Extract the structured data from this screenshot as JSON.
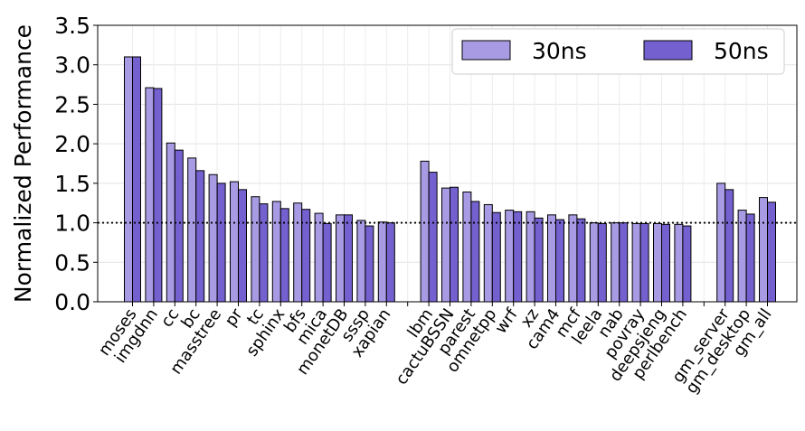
{
  "chart_data": {
    "type": "bar",
    "title": "",
    "xlabel": "",
    "ylabel": "Normalized Performance",
    "ylim": [
      0,
      3.5
    ],
    "yticks": [
      "0.0",
      "0.5",
      "1.0",
      "1.5",
      "2.0",
      "2.5",
      "3.0",
      "3.5"
    ],
    "grid": true,
    "legend_position": "top-right",
    "reference_line": {
      "y": 1.0,
      "style": "dotted",
      "color": "#000000"
    },
    "categories": [
      "moses",
      "imgdnn",
      "cc",
      "bc",
      "masstree",
      "pr",
      "tc",
      "sphinx",
      "bfs",
      "mica",
      "monetDB",
      "sssp",
      "xapian",
      "",
      "lbm",
      "cactuBSSN",
      "parest",
      "omnetpp",
      "wrf",
      "xz",
      "cam4",
      "mcf",
      "leela",
      "nab",
      "povray",
      "deepsjeng",
      "perlbench",
      "",
      "gm_server",
      "gm_desktop",
      "gm_all"
    ],
    "series": [
      {
        "name": "30ns",
        "color": "#a89be4",
        "values": [
          3.1,
          2.71,
          2.01,
          1.82,
          1.61,
          1.52,
          1.33,
          1.27,
          1.25,
          1.12,
          1.1,
          1.03,
          1.01,
          0.0,
          1.78,
          1.44,
          1.39,
          1.23,
          1.16,
          1.14,
          1.1,
          1.1,
          1.0,
          1.0,
          0.99,
          0.99,
          0.98,
          0.0,
          1.5,
          1.16,
          1.32
        ]
      },
      {
        "name": "50ns",
        "color": "#7461cf",
        "values": [
          3.1,
          2.7,
          1.92,
          1.66,
          1.5,
          1.42,
          1.24,
          1.18,
          1.17,
          0.99,
          1.1,
          0.96,
          1.0,
          0.0,
          1.64,
          1.45,
          1.27,
          1.13,
          1.14,
          1.06,
          1.04,
          1.05,
          0.99,
          1.0,
          0.99,
          0.98,
          0.96,
          0.0,
          1.42,
          1.11,
          1.26
        ]
      }
    ]
  }
}
